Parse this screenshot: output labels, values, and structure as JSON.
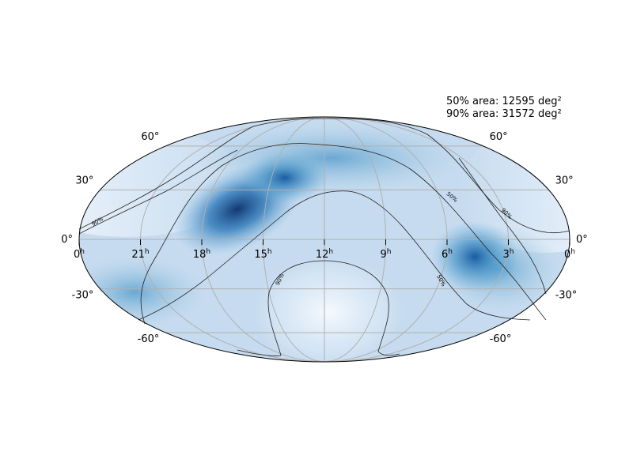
{
  "projection": "mollweide",
  "area_summary": {
    "line_50": "50% area: 12595 deg²",
    "line_90": "90% area: 31572 deg²"
  },
  "ra_ticks": [
    {
      "h": 0,
      "text": "0",
      "sup": "h"
    },
    {
      "h": 21,
      "text": "21",
      "sup": "h"
    },
    {
      "h": 18,
      "text": "18",
      "sup": "h"
    },
    {
      "h": 15,
      "text": "15",
      "sup": "h"
    },
    {
      "h": 12,
      "text": "12",
      "sup": "h"
    },
    {
      "h": 9,
      "text": "9",
      "sup": "h"
    },
    {
      "h": 6,
      "text": "6",
      "sup": "h"
    },
    {
      "h": 3,
      "text": "3",
      "sup": "h"
    },
    {
      "h": -1,
      "text": "0",
      "sup": "h"
    }
  ],
  "dec_ticks": [
    {
      "deg": 60,
      "text": "60°"
    },
    {
      "deg": 30,
      "text": "30°"
    },
    {
      "deg": 0,
      "text": "0°"
    },
    {
      "deg": -30,
      "text": "-30°"
    },
    {
      "deg": -60,
      "text": "-60°"
    }
  ],
  "contour_labels": {
    "c50": "50%",
    "c90": "90%"
  },
  "colormap": [
    "#f7fbff",
    "#c6dbef",
    "#6baed6",
    "#2171b5",
    "#08306b"
  ]
}
